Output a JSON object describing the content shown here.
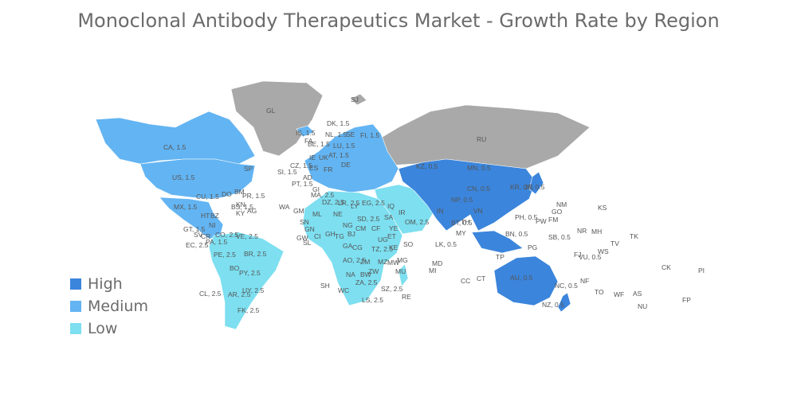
{
  "title": "Monoclonal Antibody Therapeutics Market - Growth Rate by Region",
  "colors": {
    "high": "#3b85dc",
    "medium": "#63b4f2",
    "low": "#7ddff0",
    "nodata": "#a9a9a9"
  },
  "legend": [
    {
      "label": "High",
      "color": "#3b85dc"
    },
    {
      "label": "Medium",
      "color": "#63b4f2"
    },
    {
      "label": "Low",
      "color": "#7ddff0"
    }
  ],
  "regions": [
    {
      "key": "greenland",
      "label": "GL",
      "category": "nodata"
    },
    {
      "key": "russia",
      "label": "RU",
      "category": "nodata"
    },
    {
      "key": "svalbard",
      "label": "SJ",
      "category": "nodata"
    },
    {
      "key": "canada",
      "label": "CA, 1.5",
      "category": "medium"
    },
    {
      "key": "usa",
      "label": "US, 1.5",
      "category": "medium"
    },
    {
      "key": "mexico",
      "label": "MX, 1.5",
      "category": "medium"
    },
    {
      "key": "cuba",
      "label": "CU, 1.5",
      "category": "medium"
    },
    {
      "key": "guatemala",
      "label": "GT, 1.5",
      "category": "medium"
    },
    {
      "key": "south-america",
      "label": "BR, 2.5",
      "category": "low"
    },
    {
      "key": "africa",
      "label": "DZ, 2.5",
      "category": "low"
    },
    {
      "key": "europe",
      "label": "DE, 1.5",
      "category": "medium"
    },
    {
      "key": "china",
      "label": "CN, 0.5",
      "category": "high"
    },
    {
      "key": "australia",
      "label": "AU, 0.5",
      "category": "high"
    },
    {
      "key": "new-zealand",
      "label": "NZ, 0.5",
      "category": "high"
    }
  ],
  "labels": [
    "CA, 1.5",
    "US, 1.5",
    "MX, 1.5",
    "CU, 1.5",
    "DO",
    "BM",
    "PR, 1.5",
    "BS, 1.5",
    "KY",
    "HT",
    "BZ",
    "NI",
    "GT, 1.5",
    "SV",
    "CR",
    "PA, 1.5",
    "EC, 2.5",
    "CO, 2.5",
    "VE, 2.5",
    "PE, 2.5",
    "BR, 2.5",
    "BO",
    "PY, 2.5",
    "UY, 2.5",
    "AR, 2.5",
    "CL, 2.5",
    "FK, 2.5",
    "GL",
    "IS, 1.5",
    "FA",
    "DK, 1.5",
    "NL, 1.5",
    "BE, 1.5",
    "SE",
    "FI, 1.5",
    "IE",
    "UK",
    "CZ, 1.5",
    "SI, 1.5",
    "PT, 1.5",
    "AD",
    "ES",
    "FR",
    "DE",
    "AT, 1.5",
    "LU, 1.5",
    "GI",
    "MA, 2.5",
    "DZ, 2.5",
    "LY",
    "EG, 2.5",
    "SD, 2.5",
    "ML",
    "NE",
    "WA",
    "GM",
    "SN",
    "GW",
    "SL",
    "LR, 2.5",
    "GN",
    "CI",
    "GH",
    "TG",
    "BJ",
    "NG",
    "CM",
    "CF",
    "GA",
    "CG",
    "AO, 2.5",
    "ZM",
    "ZW",
    "MZ",
    "MW",
    "MG",
    "NA",
    "BW",
    "ZA, 2.5",
    "LS, 2.5",
    "SZ, 2.5",
    "RE",
    "MU",
    "SH",
    "WC",
    "ET",
    "SO",
    "KE",
    "TZ, 2.5",
    "UG",
    "YE",
    "SA",
    "OM, 2.5",
    "IQ",
    "IR",
    "KZ, 0.5",
    "MN, 0.5",
    "CN, 0.5",
    "IN",
    "NP, 0.5",
    "KR, 0.5",
    "JP, 0.5",
    "PH, 0.5",
    "VN",
    "TH",
    "MY",
    "BN, 0.5",
    "BT, 0.5",
    "LK, 0.5",
    "MD",
    "MI",
    "CC",
    "CT",
    "TP",
    "PG",
    "SB, 0.5",
    "FJ",
    "VU, 0.5",
    "NC, 0.5",
    "NF",
    "AU, 0.5",
    "NZ, 0.5",
    "NM",
    "GO",
    "PW",
    "FM",
    "KS",
    "NR",
    "MH",
    "TV",
    "TK",
    "WS",
    "TO",
    "WF",
    "AS",
    "NU",
    "CK",
    "PI",
    "FP",
    "RU",
    "SJ",
    "SP",
    "KN",
    "AG"
  ]
}
